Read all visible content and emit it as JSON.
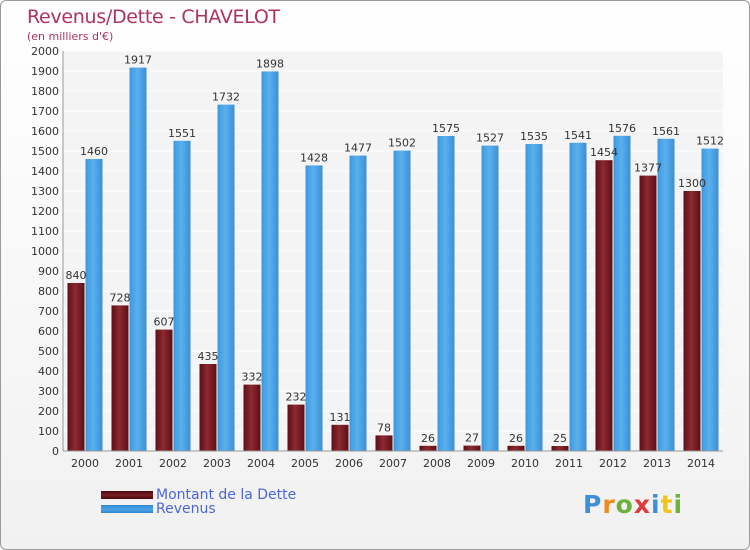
{
  "header": {
    "title": "Revenus/Dette - CHAVELOT",
    "subtitle": "(en milliers d'€)"
  },
  "legend": {
    "items": [
      {
        "label": "Montant de la Dette",
        "color": "#7b1d24"
      },
      {
        "label": "Revenus",
        "color": "#4aa3e8"
      }
    ]
  },
  "logo": {
    "text": "Proxiti"
  },
  "chart_data": {
    "type": "bar",
    "title": "Revenus/Dette - CHAVELOT",
    "subtitle": "(en milliers d'€)",
    "categories": [
      "2000",
      "2001",
      "2002",
      "2003",
      "2004",
      "2005",
      "2006",
      "2007",
      "2008",
      "2009",
      "2010",
      "2011",
      "2012",
      "2013",
      "2014"
    ],
    "series": [
      {
        "name": "Montant de la Dette",
        "color": "#7b1d24",
        "values": [
          840,
          728,
          607,
          435,
          332,
          232,
          131,
          78,
          26,
          27,
          26,
          25,
          1454,
          1377,
          1300
        ],
        "labels": [
          "840",
          "728",
          "607",
          "435",
          "332",
          "232",
          "131",
          "78",
          "26",
          "27",
          "26",
          "25",
          "1454",
          "1377",
          "1300"
        ]
      },
      {
        "name": "Revenus",
        "color": "#4aa3e8",
        "values": [
          1460,
          1917,
          1551,
          1732,
          1898,
          1428,
          1477,
          1502,
          1575,
          1527,
          1535,
          1541,
          1576,
          1561,
          1512
        ],
        "labels": [
          "1460",
          "1917",
          "1551",
          "1732",
          "1898",
          "1428",
          "1477",
          "1502",
          "1575",
          "1527",
          "1535",
          "1541",
          "1576",
          "1561",
          "1512"
        ]
      }
    ],
    "ylim": [
      0,
      2000
    ],
    "yticks": [
      0,
      100,
      200,
      300,
      400,
      500,
      600,
      700,
      800,
      900,
      1000,
      1100,
      1200,
      1300,
      1400,
      1500,
      1600,
      1700,
      1800,
      1900,
      2000
    ],
    "grid": true,
    "legend_position": "bottom-left"
  }
}
